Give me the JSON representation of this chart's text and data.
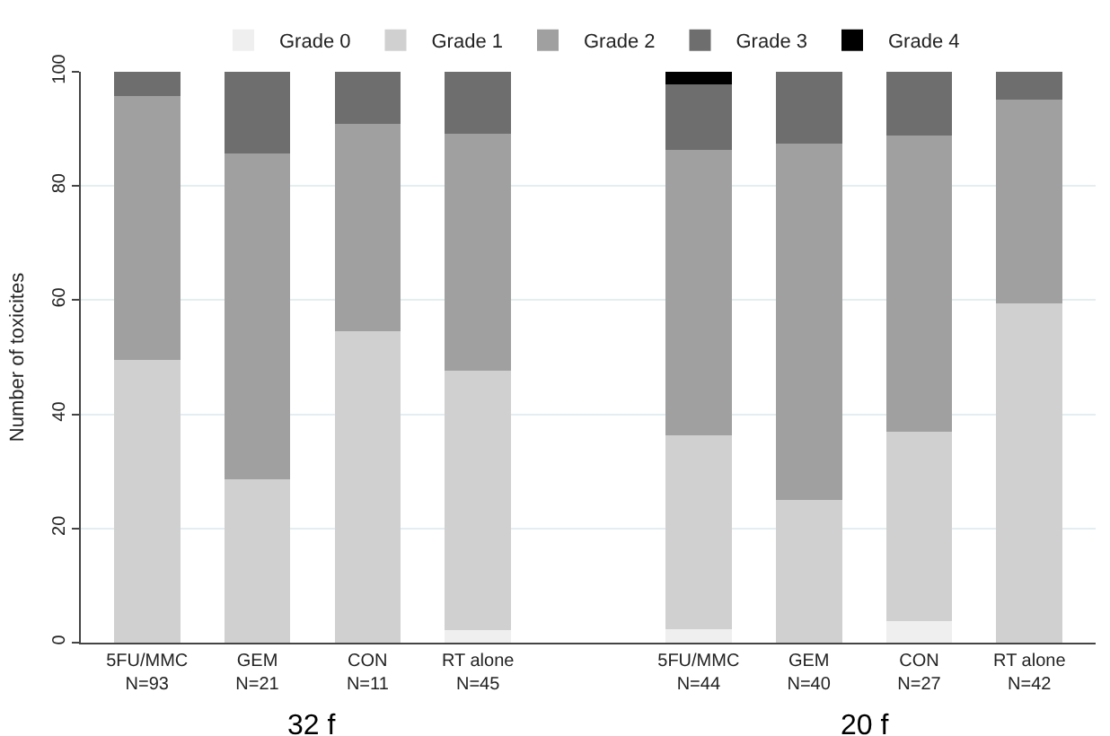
{
  "chart_data": {
    "type": "bar",
    "stacked": true,
    "ylabel": "Number of toxicites",
    "categories": [
      "5FU/MMC\nN=93",
      "GEM\nN=21",
      "CON\nN=11",
      "RT alone\nN=45",
      null,
      "5FU/MMC\nN=44",
      "GEM\nN=40",
      "CON\nN=27",
      "RT alone\nN=42"
    ],
    "series": [
      {
        "name": "Grade 0",
        "color": "#efefef",
        "values": [
          0,
          0,
          0,
          2.2,
          null,
          2.3,
          0,
          3.7,
          0
        ]
      },
      {
        "name": "Grade 1",
        "color": "#d0d0d0",
        "values": [
          49.5,
          28.6,
          54.5,
          45.5,
          null,
          34.1,
          25,
          33.3,
          59.5
        ]
      },
      {
        "name": "Grade 2",
        "color": "#a0a0a0",
        "values": [
          46.2,
          57.1,
          36.4,
          41.4,
          null,
          50,
          62.5,
          51.9,
          35.7
        ]
      },
      {
        "name": "Grade 3",
        "color": "#6e6e6e",
        "values": [
          4.3,
          14.3,
          9.1,
          10.9,
          null,
          11.4,
          12.5,
          11.1,
          4.8
        ]
      },
      {
        "name": "Grade 4",
        "color": "#000000",
        "values": [
          0,
          0,
          0,
          0,
          null,
          2.2,
          0,
          0,
          0
        ]
      }
    ],
    "ylim": [
      0,
      100
    ],
    "yticks": [
      0,
      20,
      40,
      60,
      80,
      100
    ],
    "grid": "y",
    "legend": "top",
    "annotations": [
      "32 f",
      "20 f"
    ]
  }
}
